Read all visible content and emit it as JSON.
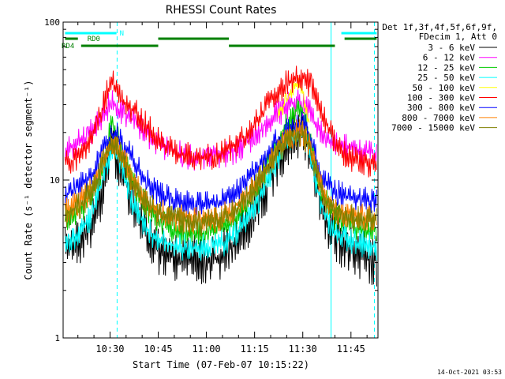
{
  "chart_data": {
    "type": "line",
    "title": "RHESSI Count Rates",
    "xlabel": "Start Time (07-Feb-07 10:15:22)",
    "ylabel": "Count Rate (s⁻¹ detector segment⁻¹)",
    "ylog": true,
    "ylim": [
      1,
      100
    ],
    "xlim_minutes_after_10_00": [
      15.4,
      113.4
    ],
    "y_ticks": [
      "1",
      "10",
      "100"
    ],
    "x_ticks": [
      {
        "label": "10:30",
        "minute": 30
      },
      {
        "label": "10:45",
        "minute": 45
      },
      {
        "label": "11:00",
        "minute": 60
      },
      {
        "label": "11:15",
        "minute": 75
      },
      {
        "label": "11:30",
        "minute": 90
      },
      {
        "label": "11:45",
        "minute": 105
      }
    ],
    "legend": {
      "placement": "right",
      "header": [
        "Det 1f,3f,4f,5f,6f,9f,",
        "FDecim 1, Att 0"
      ]
    },
    "x_minutes": [
      16,
      20,
      24,
      27,
      29,
      30.5,
      32,
      34,
      37,
      41,
      45,
      50,
      55,
      60,
      64,
      68,
      72,
      76,
      79,
      82,
      85,
      87,
      89,
      90,
      92,
      94,
      96,
      99,
      102,
      106,
      110,
      113
    ],
    "series": [
      {
        "name": "3 - 6 keV",
        "color": "#000000",
        "values": [
          3.5,
          4.0,
          5.2,
          8.0,
          12.0,
          16.0,
          14.5,
          11.0,
          7.0,
          4.5,
          3.6,
          3.3,
          3.1,
          3.1,
          3.3,
          3.8,
          5.0,
          7.0,
          9.5,
          13.0,
          17.0,
          19.0,
          19.5,
          19.0,
          15.5,
          10.5,
          6.5,
          4.8,
          4.0,
          3.6,
          3.3,
          3.1
        ]
      },
      {
        "name": "6 - 12 keV",
        "color": "#ff00ff",
        "values": [
          15.0,
          17.0,
          20.0,
          25.0,
          28.0,
          31.0,
          29.0,
          27.0,
          24.0,
          20.0,
          17.0,
          15.0,
          14.0,
          14.0,
          14.2,
          15.0,
          17.0,
          20.0,
          23.5,
          26.5,
          29.0,
          30.5,
          31.0,
          30.0,
          27.0,
          23.0,
          19.5,
          17.5,
          16.5,
          15.5,
          15.0,
          14.8
        ]
      },
      {
        "name": "12 - 25 keV",
        "color": "#00cc00",
        "values": [
          5.5,
          6.2,
          7.8,
          11.0,
          15.5,
          26.0,
          20.0,
          14.0,
          9.5,
          6.8,
          5.4,
          4.8,
          4.6,
          4.6,
          4.9,
          5.4,
          6.6,
          9.0,
          12.5,
          17.0,
          22.0,
          26.0,
          29.0,
          28.0,
          18.5,
          12.0,
          8.0,
          6.2,
          5.4,
          5.0,
          4.8,
          4.7
        ]
      },
      {
        "name": "25 - 50 keV",
        "color": "#00ffff",
        "values": [
          4.0,
          4.6,
          5.8,
          9.0,
          12.5,
          16.0,
          15.0,
          11.5,
          7.2,
          5.0,
          4.2,
          3.8,
          3.7,
          3.7,
          3.9,
          4.3,
          5.4,
          7.4,
          10.0,
          13.5,
          17.0,
          19.0,
          20.0,
          19.5,
          15.0,
          10.0,
          6.6,
          5.0,
          4.4,
          4.1,
          3.9,
          3.8
        ]
      },
      {
        "name": "50 - 100 keV",
        "color": "#ffff00",
        "values": [
          null,
          null,
          null,
          null,
          null,
          null,
          null,
          null,
          null,
          null,
          null,
          null,
          null,
          null,
          null,
          null,
          null,
          null,
          null,
          25.0,
          32.0,
          38.0,
          42.0,
          36.0,
          22.0,
          null,
          null,
          null,
          null,
          null,
          null,
          null
        ]
      },
      {
        "name": "100 - 300 keV",
        "color": "#ff0000",
        "values": [
          12.5,
          14.0,
          18.0,
          26.0,
          35.0,
          42.0,
          38.0,
          32.0,
          28.0,
          23.0,
          18.0,
          15.0,
          14.0,
          14.0,
          14.5,
          16.0,
          19.0,
          24.0,
          30.0,
          36.0,
          41.0,
          43.5,
          45.0,
          44.0,
          41.0,
          36.0,
          26.0,
          19.0,
          15.0,
          13.5,
          12.8,
          12.5
        ]
      },
      {
        "name": "300 - 800 keV",
        "color": "#0000ff",
        "values": [
          8.0,
          9.0,
          10.5,
          14.0,
          17.5,
          19.5,
          19.0,
          17.0,
          13.5,
          10.0,
          8.2,
          7.3,
          7.0,
          7.0,
          7.3,
          8.0,
          9.5,
          12.0,
          15.0,
          18.0,
          20.5,
          22.0,
          23.0,
          22.5,
          19.0,
          14.0,
          10.5,
          8.8,
          8.0,
          7.6,
          7.4,
          7.3
        ]
      },
      {
        "name": "800 - 7000 keV",
        "color": "#ff8000",
        "values": [
          6.2,
          7.0,
          8.5,
          12.0,
          15.5,
          17.5,
          16.8,
          14.0,
          10.0,
          7.4,
          6.3,
          5.8,
          5.6,
          5.6,
          5.8,
          6.4,
          7.7,
          10.0,
          12.5,
          15.5,
          18.0,
          19.5,
          20.0,
          19.5,
          16.5,
          12.0,
          8.5,
          6.8,
          6.2,
          5.9,
          5.8,
          5.7
        ]
      },
      {
        "name": "7000 - 15000 keV",
        "color": "#808000",
        "values": [
          6.0,
          6.8,
          8.2,
          11.5,
          15.0,
          17.0,
          16.3,
          13.5,
          9.7,
          7.2,
          6.1,
          5.6,
          5.4,
          5.4,
          5.6,
          6.2,
          7.5,
          9.7,
          12.2,
          15.0,
          17.5,
          19.0,
          19.5,
          19.0,
          16.0,
          11.7,
          8.3,
          6.6,
          6.0,
          5.7,
          5.6,
          5.5
        ]
      }
    ],
    "annotations": [
      {
        "label": "N",
        "color": "#00ffff",
        "segments": [
          [
            16,
            32
          ],
          [
            102,
            113
          ]
        ]
      },
      {
        "label": "RD0",
        "color": "#008000",
        "segments": [
          [
            16,
            20
          ],
          [
            45,
            67
          ],
          [
            103,
            113
          ]
        ]
      },
      {
        "label": "RD4",
        "color": "#008000",
        "segments": [
          [
            21,
            45
          ],
          [
            67,
            100
          ]
        ]
      }
    ],
    "vertical_lines": [
      {
        "minute": 15.4,
        "color": "#00ffff",
        "style": "solid"
      },
      {
        "minute": 32.2,
        "color": "#00ffff",
        "style": "dashed"
      },
      {
        "minute": 98.8,
        "color": "#00ffff",
        "style": "solid"
      },
      {
        "minute": 112.3,
        "color": "#00ffff",
        "style": "dashed"
      }
    ],
    "grid": false
  },
  "footer": {
    "timestamp": "14-Oct-2021 03:53"
  }
}
